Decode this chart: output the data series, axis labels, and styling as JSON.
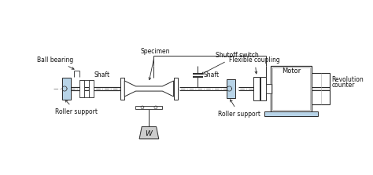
{
  "bg_color": "#ffffff",
  "line_color": "#2a2a2a",
  "blue_fill": "#b8d4e8",
  "fig_width": 4.74,
  "fig_height": 2.23,
  "dpi": 100,
  "labels": {
    "specimen": "Specimen",
    "ball_bearing": "Ball bearing",
    "shaft_left": "Shaft",
    "shaft_right": "Shaft",
    "shutoff": "Shutoff switch",
    "flexible": "Flexible coupling",
    "motor": "Motor",
    "revolution": [
      "Revolution",
      "counter"
    ],
    "roller_left": "Roller support",
    "roller_right": "Roller support",
    "weight": "W"
  },
  "fontsize": 5.5
}
